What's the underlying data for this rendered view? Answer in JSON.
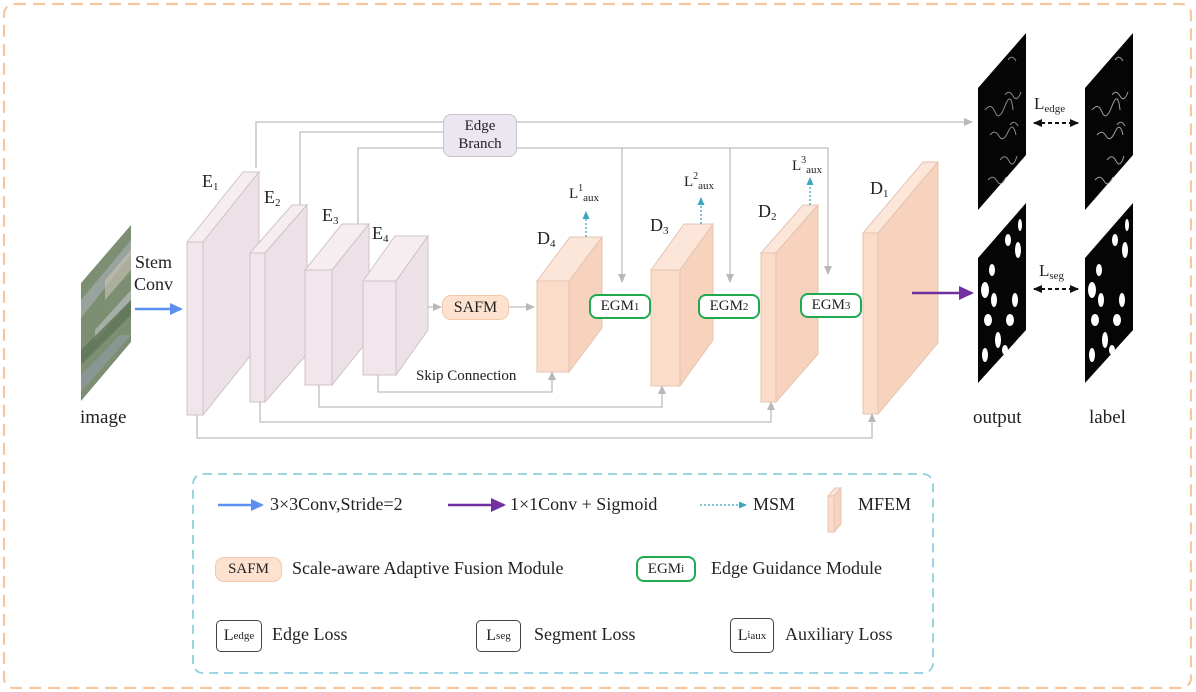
{
  "figure": {
    "input_label": "image",
    "stem_line1": "Stem",
    "stem_line2": "Conv",
    "edge_branch_line1": "Edge",
    "edge_branch_line2": "Branch",
    "safm": "SAFM",
    "skip_connection": "Skip Connection",
    "output_label": "output",
    "gt_label": "label",
    "encoders": [
      {
        "base": "E",
        "sub": "1"
      },
      {
        "base": "E",
        "sub": "2"
      },
      {
        "base": "E",
        "sub": "3"
      },
      {
        "base": "E",
        "sub": "4"
      }
    ],
    "decoders": [
      {
        "base": "D",
        "sub": "4"
      },
      {
        "base": "D",
        "sub": "3"
      },
      {
        "base": "D",
        "sub": "2"
      },
      {
        "base": "D",
        "sub": "1"
      }
    ],
    "egms": [
      {
        "base": "EGM",
        "sub": "1"
      },
      {
        "base": "EGM",
        "sub": "2"
      },
      {
        "base": "EGM",
        "sub": "3"
      }
    ],
    "aux_losses": [
      {
        "base": "L",
        "sup": "1",
        "sub": "aux"
      },
      {
        "base": "L",
        "sup": "2",
        "sub": "aux"
      },
      {
        "base": "L",
        "sup": "3",
        "sub": "aux"
      }
    ],
    "edge_loss": {
      "base": "L",
      "sub": "edge"
    },
    "seg_loss": {
      "base": "L",
      "sub": "seg"
    }
  },
  "legend": {
    "conv3": "3×3Conv,Stride=2",
    "conv1": "1×1Conv + Sigmoid",
    "msm": "MSM",
    "mfem": "MFEM",
    "safm_key": "SAFM",
    "safm_desc": "Scale-aware Adaptive Fusion Module",
    "egm_key_base": "EGM",
    "egm_key_sub": "i",
    "egm_desc": "Edge Guidance Module",
    "edge_key_base": "L",
    "edge_key_sub": "edge",
    "edge_desc": "Edge Loss",
    "seg_key_base": "L",
    "seg_key_sub": "seg",
    "seg_desc": "Segment Loss",
    "aux_key_base": "L",
    "aux_key_sup": "i",
    "aux_key_sub": "aux",
    "aux_desc": "Auxiliary Loss"
  },
  "colors": {
    "frame": "#f5c6a0",
    "encoder": "#f1e6ec",
    "decoder": "#fadcc9",
    "safm_fill": "#fde3cf",
    "egm_border": "#1faa50",
    "edge_branch_fill": "#ece6f0",
    "blue_arrow": "#5b8ff0",
    "purple_arrow": "#7030a0",
    "msm": "#3aa6c0",
    "legend_border": "#8fd0e0"
  },
  "icons": [
    "satellite-image",
    "edge-output-image",
    "edge-label-image",
    "seg-output-image",
    "seg-label-image"
  ]
}
